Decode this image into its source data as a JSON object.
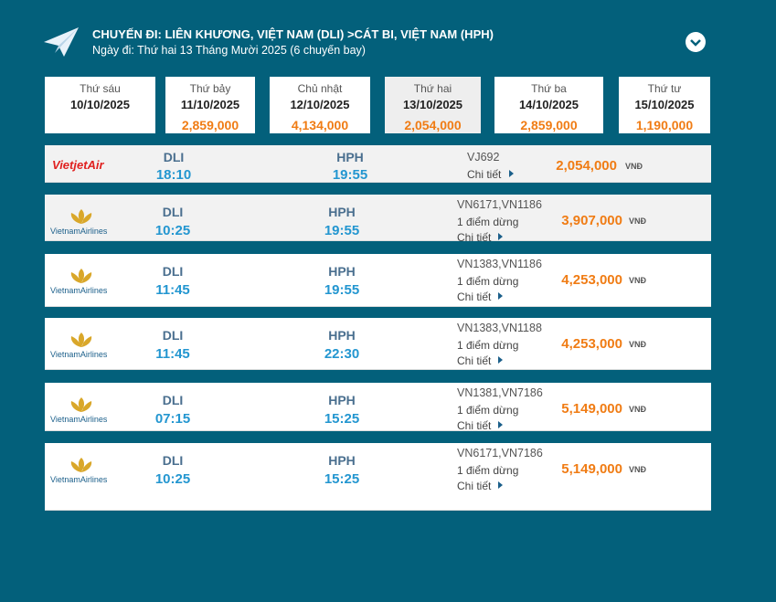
{
  "header": {
    "title": "CHUYẾN ĐI: LIÊN KHƯƠNG, VIỆT NAM (DLI) >CÁT BI, VIỆT NAM (HPH)",
    "subtitle": "Ngày đi: Thứ hai 13 Tháng Mười 2025 (6 chuyến bay)"
  },
  "dates": [
    {
      "day": "Thứ sáu",
      "date": "10/10/2025"
    },
    {
      "day": "Thứ bảy",
      "date": "11/10/2025",
      "price": "2,859,000"
    },
    {
      "day": "Chủ nhật",
      "date": "12/10/2025",
      "price": "4,134,000"
    },
    {
      "day": "Thứ hai",
      "date": "13/10/2025",
      "price": "2,054,000"
    },
    {
      "day": "Thứ ba",
      "date": "14/10/2025",
      "price": "2,859,000"
    },
    {
      "day": "Thứ tư",
      "date": "15/10/2025",
      "price": "1,190,000"
    }
  ],
  "flights": [
    {
      "airline": "VietjetAir",
      "from": "DLI",
      "departure": "18:10",
      "to": "HPH",
      "arrival": "19:55",
      "code": "VJ692",
      "detail": "Chi tiết",
      "price": "2,054,000",
      "currency": "VNĐ"
    },
    {
      "airline": "VietnamAirlines",
      "from": "DLI",
      "departure": "10:25",
      "to": "HPH",
      "arrival": "19:55",
      "code": "VN6171,VN1186",
      "stops": "1 điểm dừng",
      "detail": "Chi tiết",
      "price": "3,907,000",
      "currency": "VNĐ"
    },
    {
      "airline": "VietnamAirlines",
      "from": "DLI",
      "departure": "11:45",
      "to": "HPH",
      "arrival": "19:55",
      "code": "VN1383,VN1186",
      "stops": "1 điểm dừng",
      "detail": "Chi tiết",
      "price": "4,253,000",
      "currency": "VNĐ"
    },
    {
      "airline": "VietnamAirlines",
      "from": "DLI",
      "departure": "11:45",
      "to": "HPH",
      "arrival": "22:30",
      "code": "VN1383,VN1188",
      "stops": "1 điểm dừng",
      "detail": "Chi tiết",
      "price": "4,253,000",
      "currency": "VNĐ"
    },
    {
      "airline": "VietnamAirlines",
      "from": "DLI",
      "departure": "07:15",
      "to": "HPH",
      "arrival": "15:25",
      "code": "VN1381,VN7186",
      "stops": "1 điểm dừng",
      "detail": "Chi tiết",
      "price": "5,149,000",
      "currency": "VNĐ"
    },
    {
      "airline": "VietnamAirlines",
      "from": "DLI",
      "departure": "10:25",
      "to": "HPH",
      "arrival": "15:25",
      "code": "VN6171,VN7186",
      "stops": "1 điểm dừng",
      "detail": "Chi tiết",
      "price": "5,149,000",
      "currency": "VNĐ"
    }
  ]
}
